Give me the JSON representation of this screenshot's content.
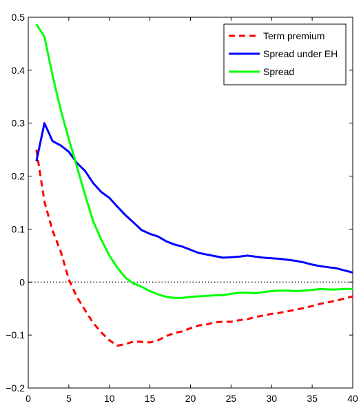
{
  "chart_data": {
    "type": "line",
    "title": "",
    "xlabel": "",
    "ylabel": "",
    "xlim": [
      0,
      40
    ],
    "ylim": [
      -0.2,
      0.5
    ],
    "xticks": [
      0,
      5,
      10,
      15,
      20,
      25,
      30,
      35,
      40
    ],
    "yticks": [
      -0.2,
      -0.1,
      0,
      0.1,
      0.2,
      0.3,
      0.4,
      0.5
    ],
    "ytick_labels": [
      "−0.2",
      "−0.1",
      "0",
      "0.1",
      "0.2",
      "0.3",
      "0.4",
      "0.5"
    ],
    "xtick_labels": [
      "0",
      "5",
      "10",
      "15",
      "20",
      "25",
      "30",
      "35",
      "40"
    ],
    "grid": false,
    "legend_position": "top-right",
    "zero_line": {
      "y": 0,
      "style": "dotted",
      "color": "#000000"
    },
    "series": [
      {
        "name": "Term premium",
        "color": "#ff0000",
        "style": "dashed",
        "x": [
          1,
          2,
          3,
          4,
          5,
          6,
          7,
          8,
          9,
          10,
          11,
          12,
          13,
          14,
          15,
          16,
          17,
          18,
          19,
          20,
          21,
          22,
          23,
          24,
          25,
          26,
          27,
          28,
          29,
          30,
          31,
          32,
          33,
          34,
          35,
          36,
          37,
          38,
          39,
          40
        ],
        "values": [
          0.25,
          0.152,
          0.097,
          0.058,
          0.005,
          -0.028,
          -0.053,
          -0.077,
          -0.095,
          -0.11,
          -0.12,
          -0.117,
          -0.112,
          -0.113,
          -0.114,
          -0.11,
          -0.102,
          -0.096,
          -0.093,
          -0.087,
          -0.082,
          -0.08,
          -0.076,
          -0.075,
          -0.075,
          -0.072,
          -0.07,
          -0.066,
          -0.063,
          -0.06,
          -0.058,
          -0.055,
          -0.052,
          -0.049,
          -0.045,
          -0.041,
          -0.038,
          -0.035,
          -0.031,
          -0.027
        ]
      },
      {
        "name": "Spread under EH",
        "color": "#0000ff",
        "style": "solid",
        "x": [
          1,
          2,
          3,
          4,
          5,
          6,
          7,
          8,
          9,
          10,
          11,
          12,
          13,
          14,
          15,
          16,
          17,
          18,
          19,
          20,
          21,
          22,
          23,
          24,
          25,
          26,
          27,
          28,
          29,
          30,
          31,
          32,
          33,
          34,
          35,
          36,
          37,
          38,
          39,
          40
        ],
        "values": [
          0.228,
          0.3,
          0.266,
          0.258,
          0.246,
          0.225,
          0.21,
          0.187,
          0.17,
          0.159,
          0.142,
          0.126,
          0.112,
          0.098,
          0.091,
          0.086,
          0.077,
          0.071,
          0.067,
          0.061,
          0.055,
          0.052,
          0.049,
          0.046,
          0.047,
          0.048,
          0.05,
          0.048,
          0.046,
          0.045,
          0.044,
          0.042,
          0.04,
          0.037,
          0.033,
          0.03,
          0.028,
          0.026,
          0.022,
          0.018
        ]
      },
      {
        "name": "Spread",
        "color": "#00ff00",
        "style": "solid",
        "x": [
          1,
          2,
          3,
          4,
          5,
          6,
          7,
          8,
          9,
          10,
          11,
          12,
          13,
          14,
          15,
          16,
          17,
          18,
          19,
          20,
          21,
          22,
          23,
          24,
          25,
          26,
          27,
          28,
          29,
          30,
          31,
          32,
          33,
          34,
          35,
          36,
          37,
          38,
          39,
          40
        ],
        "values": [
          0.487,
          0.463,
          0.39,
          0.325,
          0.27,
          0.218,
          0.165,
          0.115,
          0.08,
          0.05,
          0.027,
          0.008,
          -0.003,
          -0.009,
          -0.017,
          -0.023,
          -0.028,
          -0.03,
          -0.03,
          -0.028,
          -0.027,
          -0.026,
          -0.025,
          -0.025,
          -0.022,
          -0.02,
          -0.02,
          -0.021,
          -0.019,
          -0.017,
          -0.016,
          -0.016,
          -0.017,
          -0.016,
          -0.015,
          -0.013,
          -0.014,
          -0.014,
          -0.013,
          -0.013
        ]
      }
    ]
  }
}
